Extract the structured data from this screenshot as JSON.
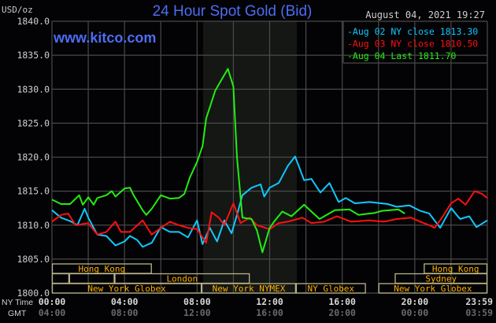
{
  "chart_data": {
    "type": "line",
    "title": "24 Hour Spot Gold (Bid)",
    "website": "www.kitco.com",
    "unit_label": "USD/oz",
    "timestamp": "August 04, 2021 19:27",
    "ylim": [
      1800,
      1840
    ],
    "xlim_hours": [
      0,
      24
    ],
    "grid": true,
    "legend_placement": "top-right",
    "y_ticks": [
      "1840.0",
      "1835.0",
      "1830.0",
      "1825.0",
      "1820.0",
      "1815.0",
      "1810.0",
      "1805.0",
      "1800.0"
    ],
    "x_row_labels": {
      "ny": "NY Time",
      "gmt": "GMT"
    },
    "x_ticks": [
      {
        "hour": 0,
        "ny": "00:00",
        "gmt": "04:00"
      },
      {
        "hour": 4,
        "ny": "04:00",
        "gmt": "08:00"
      },
      {
        "hour": 8,
        "ny": "08:00",
        "gmt": "12:00"
      },
      {
        "hour": 12,
        "ny": "12:00",
        "gmt": "16:00"
      },
      {
        "hour": 16,
        "ny": "16:00",
        "gmt": "20:00"
      },
      {
        "hour": 20,
        "ny": "20:00",
        "gmt": "00:00"
      },
      {
        "hour": 24,
        "ny": "23:59",
        "gmt": "03:59"
      }
    ],
    "shaded_session_hours": [
      8.33,
      13.5
    ],
    "series": [
      {
        "name": "Aug 02 NY close 1813.30",
        "color": "#11c8ff",
        "points": [
          [
            0,
            1812.2
          ],
          [
            0.5,
            1811.1
          ],
          [
            1,
            1810.6
          ],
          [
            1.4,
            1810
          ],
          [
            1.8,
            1812.4
          ],
          [
            2,
            1811.1
          ],
          [
            2.5,
            1808.6
          ],
          [
            3,
            1808.4
          ],
          [
            3.5,
            1807
          ],
          [
            4,
            1807.6
          ],
          [
            4.3,
            1808.4
          ],
          [
            4.7,
            1807.8
          ],
          [
            5,
            1806.8
          ],
          [
            5.5,
            1807.4
          ],
          [
            6,
            1809.7
          ],
          [
            6.5,
            1809
          ],
          [
            7,
            1809
          ],
          [
            7.5,
            1808.2
          ],
          [
            8,
            1810.7
          ],
          [
            8.3,
            1807.2
          ],
          [
            8.7,
            1809.6
          ],
          [
            9.1,
            1807.6
          ],
          [
            9.5,
            1810.7
          ],
          [
            9.9,
            1808.8
          ],
          [
            10.2,
            1811.5
          ],
          [
            10.5,
            1814.4
          ],
          [
            11,
            1815.5
          ],
          [
            11.5,
            1816
          ],
          [
            11.7,
            1814.2
          ],
          [
            12,
            1815.5
          ],
          [
            12.5,
            1816.2
          ],
          [
            13,
            1818.7
          ],
          [
            13.4,
            1820.1
          ],
          [
            13.9,
            1816.6
          ],
          [
            14.3,
            1816.8
          ],
          [
            14.8,
            1814.8
          ],
          [
            15.3,
            1816.2
          ],
          [
            15.8,
            1813.4
          ],
          [
            16.2,
            1814
          ],
          [
            16.7,
            1813.2
          ],
          [
            17.5,
            1813.4
          ],
          [
            18.5,
            1813.1
          ],
          [
            19,
            1812.7
          ],
          [
            19.7,
            1812.9
          ],
          [
            20.3,
            1812.1
          ],
          [
            20.8,
            1811.7
          ],
          [
            21.4,
            1809.6
          ],
          [
            22,
            1812.5
          ],
          [
            22.5,
            1810.9
          ],
          [
            23,
            1811.3
          ],
          [
            23.4,
            1809.7
          ],
          [
            24,
            1810.7
          ]
        ]
      },
      {
        "name": "Aug 03 NY close 1810.50",
        "color": "#ff1010",
        "points": [
          [
            0,
            1810.5
          ],
          [
            0.5,
            1811.5
          ],
          [
            0.9,
            1811.7
          ],
          [
            1.3,
            1810
          ],
          [
            2,
            1810.3
          ],
          [
            2.5,
            1808.6
          ],
          [
            3,
            1809
          ],
          [
            3.5,
            1810.5
          ],
          [
            3.8,
            1809
          ],
          [
            4.3,
            1809
          ],
          [
            5,
            1810.7
          ],
          [
            5.5,
            1808.6
          ],
          [
            6,
            1809.6
          ],
          [
            6.5,
            1810.5
          ],
          [
            7,
            1810
          ],
          [
            7.5,
            1809.6
          ],
          [
            8,
            1809.4
          ],
          [
            8.5,
            1807.4
          ],
          [
            8.8,
            1811.9
          ],
          [
            9.2,
            1811.1
          ],
          [
            9.5,
            1810
          ],
          [
            10,
            1813.2
          ],
          [
            10.4,
            1810.3
          ],
          [
            10.9,
            1811.1
          ],
          [
            11.3,
            1810
          ],
          [
            12,
            1809.4
          ],
          [
            12.5,
            1810.3
          ],
          [
            13,
            1810.5
          ],
          [
            13.8,
            1811.1
          ],
          [
            14.3,
            1810.3
          ],
          [
            15,
            1810.5
          ],
          [
            15.7,
            1811.3
          ],
          [
            16.5,
            1810.5
          ],
          [
            17.5,
            1810.7
          ],
          [
            18.3,
            1810.5
          ],
          [
            19,
            1810.9
          ],
          [
            19.8,
            1811.1
          ],
          [
            20.3,
            1810.5
          ],
          [
            20.8,
            1810
          ],
          [
            21.1,
            1809.6
          ],
          [
            21.5,
            1811.1
          ],
          [
            22,
            1813.2
          ],
          [
            22.4,
            1813.9
          ],
          [
            22.8,
            1813
          ],
          [
            23.3,
            1815
          ],
          [
            23.7,
            1814.6
          ],
          [
            24,
            1814
          ]
        ]
      },
      {
        "name": "Aug 04 Last 1811.70",
        "color": "#22ee11",
        "points": [
          [
            0,
            1813.75
          ],
          [
            0.5,
            1813.1
          ],
          [
            1,
            1813.1
          ],
          [
            1.5,
            1814.4
          ],
          [
            1.7,
            1813
          ],
          [
            2,
            1814.1
          ],
          [
            2.3,
            1813
          ],
          [
            2.5,
            1814
          ],
          [
            3,
            1814.4
          ],
          [
            3.3,
            1815
          ],
          [
            3.5,
            1814.2
          ],
          [
            4,
            1815.4
          ],
          [
            4.3,
            1815.5
          ],
          [
            4.5,
            1814.4
          ],
          [
            5,
            1812.2
          ],
          [
            5.2,
            1811.5
          ],
          [
            5.5,
            1812.4
          ],
          [
            6,
            1814.4
          ],
          [
            6.5,
            1813.9
          ],
          [
            7,
            1814
          ],
          [
            7.3,
            1814.6
          ],
          [
            7.6,
            1817
          ],
          [
            8,
            1819.3
          ],
          [
            8.3,
            1821.6
          ],
          [
            8.5,
            1825.7
          ],
          [
            9,
            1829.8
          ],
          [
            9.5,
            1832.1
          ],
          [
            9.7,
            1833
          ],
          [
            10,
            1830.4
          ],
          [
            10.2,
            1820
          ],
          [
            10.5,
            1811.1
          ],
          [
            11,
            1810.9
          ],
          [
            11.3,
            1809.2
          ],
          [
            11.6,
            1806
          ],
          [
            12,
            1809.6
          ],
          [
            12.3,
            1810.7
          ],
          [
            12.7,
            1812
          ],
          [
            13.2,
            1811.3
          ],
          [
            13.9,
            1813
          ],
          [
            14.3,
            1812
          ],
          [
            14.75,
            1810.9
          ],
          [
            15.6,
            1812.2
          ],
          [
            16.4,
            1812.3
          ],
          [
            16.9,
            1811.5
          ],
          [
            17.8,
            1811.8
          ],
          [
            18.2,
            1812.1
          ],
          [
            19.1,
            1812.3
          ],
          [
            19.45,
            1811.7
          ]
        ]
      }
    ],
    "sessions": [
      {
        "label": "Hong Kong",
        "row": 0,
        "start": 0,
        "end": 5.5
      },
      {
        "label": "Hong Kong",
        "row": 0,
        "start": 20.5,
        "end": 24
      },
      {
        "label": "",
        "row": 1,
        "start": 0,
        "end": 0.95
      },
      {
        "label": "",
        "row": 1,
        "start": 0.95,
        "end": 3.45
      },
      {
        "label": "London",
        "row": 1,
        "start": 3.45,
        "end": 10.9
      },
      {
        "label": "Sydney",
        "row": 1,
        "start": 18.9,
        "end": 24
      },
      {
        "label": "New York Globex",
        "row": 2,
        "start": 0,
        "end": 8.25
      },
      {
        "label": "New York NYMEX",
        "row": 2,
        "start": 8.25,
        "end": 13.45
      },
      {
        "label": "NY Globex",
        "row": 2,
        "start": 13.45,
        "end": 17.3
      },
      {
        "label": "New York Globex",
        "row": 2,
        "start": 18,
        "end": 24
      }
    ]
  }
}
